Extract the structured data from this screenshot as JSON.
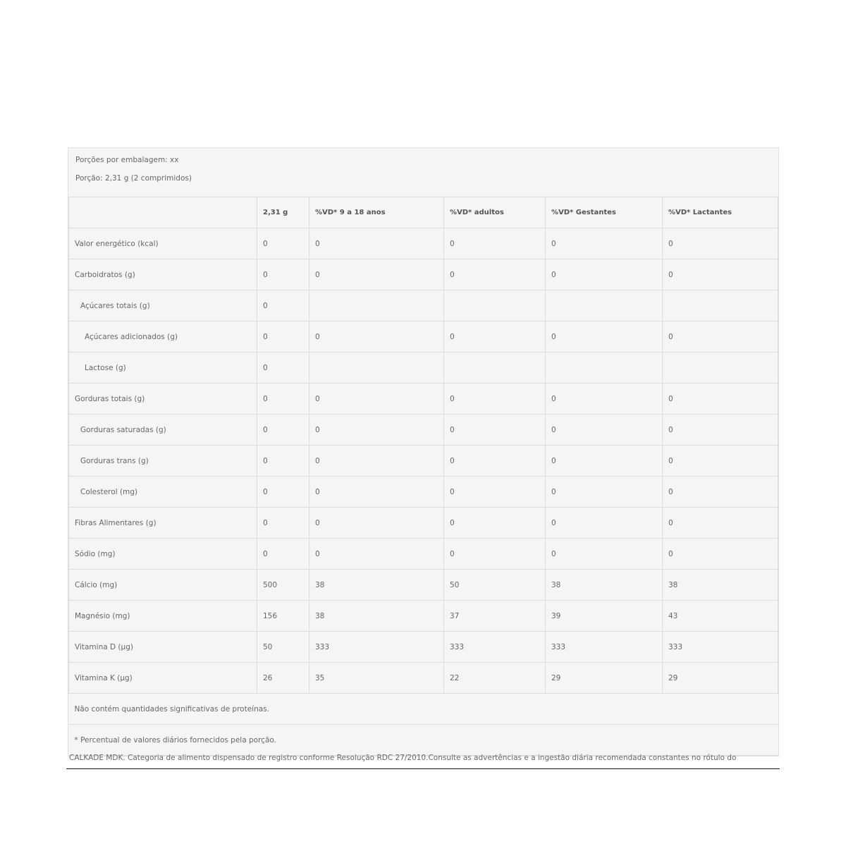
{
  "info": {
    "servings": "Porções por embalagem: xx",
    "portion": "Porção: 2,31 g (2 comprimidos)"
  },
  "columns": [
    "",
    "2,31 g",
    "%VD*     9 a 18 anos",
    "%VD* adultos",
    "%VD* Gestantes",
    "%VD* Lactantes"
  ],
  "rows": [
    {
      "label": "Valor energético (kcal)",
      "indent": 0,
      "values": [
        "0",
        "0",
        "0",
        "0",
        "0"
      ]
    },
    {
      "label": "Carboidratos (g)",
      "indent": 0,
      "values": [
        "0",
        "0",
        "0",
        "0",
        "0"
      ]
    },
    {
      "label": "Açúcares totais (g)",
      "indent": 1,
      "values": [
        "0",
        "",
        "",
        "",
        ""
      ]
    },
    {
      "label": "Açúcares adicionados (g)",
      "indent": 2,
      "values": [
        "0",
        "0",
        "0",
        "0",
        "0"
      ]
    },
    {
      "label": "Lactose (g)",
      "indent": 2,
      "values": [
        "0",
        "",
        "",
        "",
        ""
      ]
    },
    {
      "label": "Gorduras totais (g)",
      "indent": 0,
      "values": [
        "0",
        "0",
        "0",
        "0",
        "0"
      ]
    },
    {
      "label": "Gorduras saturadas (g)",
      "indent": 1,
      "values": [
        "0",
        "0",
        "0",
        "0",
        "0"
      ]
    },
    {
      "label": "Gorduras trans (g)",
      "indent": 1,
      "values": [
        "0",
        "0",
        "0",
        "0",
        "0"
      ]
    },
    {
      "label": "Colesterol (mg)",
      "indent": 1,
      "values": [
        "0",
        "0",
        "0",
        "0",
        "0"
      ]
    },
    {
      "label": "Fibras Alimentares (g)",
      "indent": 0,
      "values": [
        "0",
        "0",
        "0",
        "0",
        "0"
      ]
    },
    {
      "label": "Sódio (mg)",
      "indent": 0,
      "values": [
        "0",
        "0",
        "0",
        "0",
        "0"
      ]
    },
    {
      "label": "Cálcio (mg)",
      "indent": 0,
      "values": [
        "500",
        "38",
        "50",
        "38",
        "38"
      ]
    },
    {
      "label": "Magnésio (mg)",
      "indent": 0,
      "values": [
        "156",
        "38",
        "37",
        "39",
        "43"
      ]
    },
    {
      "label": "Vitamina D (µg)",
      "indent": 0,
      "values": [
        "50",
        "333",
        "333",
        "333",
        "333"
      ]
    },
    {
      "label": "Vitamina K (µg)",
      "indent": 0,
      "values": [
        "26",
        "35",
        "22",
        "29",
        "29"
      ]
    }
  ],
  "notes": [
    "Não contém quantidades significativas de proteínas.",
    "* Percentual de valores diários fornecidos pela porção."
  ],
  "footer": "CALKADE MDK. Categoria de alimento dispensado de registro conforme Resolução RDC 27/2010.Consulte as advertências e a ingestão diária recomendada constantes no rótulo do"
}
